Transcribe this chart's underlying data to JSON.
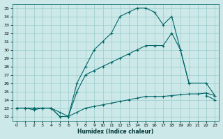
{
  "xlabel": "Humidex (Indice chaleur)",
  "background_color": "#cce8e8",
  "grid_color": "#99cccc",
  "line_color": "#006666",
  "xlim": [
    -0.5,
    23.5
  ],
  "ylim": [
    21.5,
    35.5
  ],
  "xticks": [
    0,
    1,
    2,
    3,
    4,
    5,
    6,
    7,
    8,
    9,
    10,
    11,
    12,
    13,
    14,
    15,
    16,
    17,
    18,
    19,
    20,
    21,
    22,
    23
  ],
  "yticks": [
    22,
    23,
    24,
    25,
    26,
    27,
    28,
    29,
    30,
    31,
    32,
    33,
    34,
    35
  ],
  "series1_x": [
    0,
    1,
    2,
    3,
    4,
    5,
    6,
    7,
    8,
    9,
    10,
    11,
    12,
    13,
    14,
    15,
    16,
    17,
    18,
    19,
    20,
    22,
    23
  ],
  "series1_y": [
    23,
    23,
    23,
    23,
    23,
    22,
    22,
    26,
    28,
    30,
    31,
    32,
    34,
    34.5,
    35,
    35,
    34.5,
    33,
    34,
    30,
    26,
    26,
    24.5
  ],
  "series2_x": [
    0,
    1,
    2,
    3,
    4,
    5,
    6,
    7,
    8,
    9,
    10,
    11,
    12,
    13,
    14,
    15,
    16,
    17,
    18,
    19,
    20,
    21,
    22,
    23
  ],
  "series2_y": [
    23,
    23,
    23,
    23,
    23,
    22,
    22,
    25,
    27,
    27.5,
    28,
    28.5,
    29,
    29.5,
    30,
    30.5,
    30.5,
    30.5,
    32,
    30,
    26,
    null,
    24.5,
    24
  ],
  "series3_x": [
    0,
    1,
    2,
    3,
    4,
    5,
    6,
    7,
    8,
    9,
    10,
    11,
    12,
    13,
    14,
    15,
    16,
    17,
    18,
    19,
    20,
    21,
    22,
    23
  ],
  "series3_y": [
    23,
    23,
    22.8,
    23,
    23,
    22.5,
    22,
    22.5,
    23,
    23.2,
    23.4,
    23.6,
    23.8,
    24,
    24.2,
    24.4,
    24.4,
    24.4,
    24.5,
    24.6,
    24.7,
    24.7,
    24.8,
    24.5
  ]
}
